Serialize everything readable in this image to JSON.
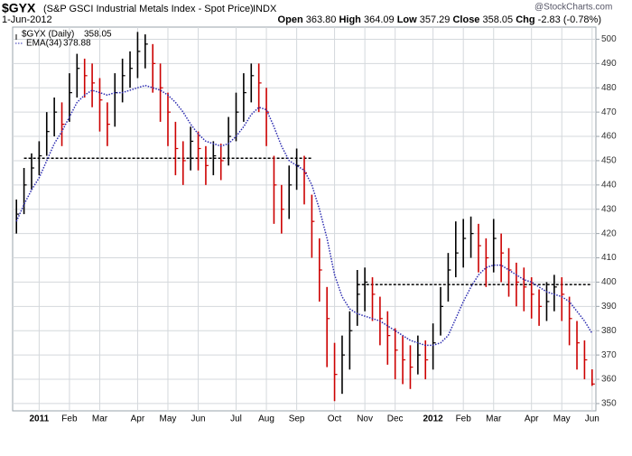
{
  "chart_data": {
    "type": "ohlc",
    "symbol": "$GYX",
    "title": "(S&P GSCI Industrial Metals Index - Spot Price)",
    "exchange": "INDX",
    "date": "1-Jun-2012",
    "watermark": "@StockCharts.com",
    "quote": {
      "open_label": "Open",
      "open": {
        "value": 363.8,
        "label": "363.80"
      },
      "high_label": "High",
      "high": {
        "value": 364.09,
        "label": "364.09"
      },
      "low_label": "Low",
      "low": {
        "value": 357.29,
        "label": "357.29"
      },
      "close_label": "Close",
      "close": {
        "value": 358.05,
        "label": "358.05"
      },
      "chg_label": "Chg",
      "chg": {
        "value": -2.83,
        "label": "-2.83"
      },
      "chg_pct": {
        "value": -0.78,
        "label": "(-0.78%)"
      }
    },
    "categories": [
      null,
      null,
      null,
      "2011",
      null,
      null,
      null,
      "Feb",
      null,
      null,
      null,
      "Mar",
      null,
      null,
      null,
      null,
      "Apr",
      null,
      null,
      null,
      "May",
      null,
      null,
      null,
      "Jun",
      null,
      null,
      null,
      null,
      "Jul",
      null,
      null,
      null,
      "Aug",
      null,
      null,
      null,
      "Sep",
      null,
      null,
      null,
      null,
      "Oct",
      null,
      null,
      null,
      "Nov",
      null,
      null,
      null,
      "Dec",
      null,
      null,
      null,
      null,
      "2012",
      null,
      null,
      null,
      "Feb",
      null,
      null,
      null,
      "Mar",
      null,
      null,
      null,
      null,
      "Apr",
      null,
      null,
      null,
      "May",
      null,
      null,
      null,
      "Jun"
    ],
    "series": [
      {
        "name": "$GYX (Daily)",
        "up_color": "#000000",
        "down_color": "#cc0000",
        "values": [
          428,
          440,
          447,
          452,
          462,
          470,
          465,
          478,
          488,
          485,
          482,
          475,
          465,
          478,
          485,
          488,
          495,
          498,
          490,
          480,
          470,
          455,
          450,
          458,
          455,
          448,
          452,
          450,
          460,
          470,
          478,
          485,
          482,
          470,
          440,
          430,
          440,
          448,
          445,
          425,
          405,
          385,
          362,
          370,
          380,
          395,
          400,
          395,
          385,
          378,
          372,
          368,
          365,
          370,
          368,
          375,
          390,
          405,
          412,
          418,
          420,
          415,
          410,
          418,
          412,
          405,
          400,
          398,
          395,
          390,
          392,
          398,
          395,
          385,
          375,
          368,
          358.05
        ],
        "high": [
          434,
          447,
          453,
          458,
          470,
          476,
          474,
          486,
          494,
          492,
          490,
          484,
          474,
          486,
          492,
          495,
          503,
          502,
          498,
          490,
          478,
          466,
          458,
          464,
          462,
          456,
          458,
          457,
          468,
          478,
          486,
          490,
          490,
          480,
          452,
          440,
          448,
          455,
          452,
          436,
          418,
          398,
          375,
          378,
          388,
          405,
          406,
          402,
          394,
          388,
          381,
          378,
          374,
          378,
          376,
          383,
          398,
          412,
          425,
          426,
          427,
          424,
          418,
          426,
          420,
          414,
          408,
          406,
          402,
          397,
          400,
          403,
          402,
          394,
          384,
          376,
          364.09
        ],
        "low": [
          420,
          428,
          438,
          444,
          452,
          460,
          456,
          466,
          476,
          476,
          472,
          462,
          456,
          464,
          474,
          480,
          484,
          488,
          478,
          466,
          456,
          444,
          440,
          446,
          446,
          440,
          444,
          442,
          448,
          458,
          466,
          474,
          470,
          456,
          424,
          420,
          426,
          438,
          432,
          410,
          392,
          365,
          351,
          354,
          364,
          382,
          388,
          384,
          374,
          366,
          360,
          358,
          356,
          362,
          360,
          364,
          378,
          392,
          402,
          406,
          410,
          404,
          398,
          404,
          400,
          394,
          390,
          388,
          385,
          382,
          384,
          388,
          384,
          374,
          364,
          360,
          357.29
        ]
      },
      {
        "name": "EMA(34)",
        "color": "#2b2bb0",
        "style": "dotted",
        "values": [
          425,
          432,
          438,
          443,
          450,
          457,
          462,
          468,
          474,
          477,
          479,
          478,
          477,
          478,
          478,
          479,
          480,
          481,
          480,
          479,
          477,
          474,
          470,
          465,
          461,
          458,
          457,
          456,
          457,
          460,
          464,
          469,
          472,
          471,
          464,
          456,
          450,
          448,
          446,
          440,
          430,
          418,
          403,
          394,
          389,
          387,
          386,
          385,
          384,
          382,
          380,
          378,
          376,
          375,
          374,
          374,
          375,
          378,
          385,
          392,
          398,
          403,
          406,
          407,
          407,
          405,
          403,
          401,
          400,
          398,
          396,
          395,
          394,
          392,
          388,
          384,
          378.88
        ]
      }
    ],
    "levels": [
      451,
      399
    ],
    "ylim": [
      347,
      505
    ],
    "yticks": [
      350,
      360,
      370,
      380,
      390,
      400,
      410,
      420,
      430,
      440,
      450,
      460,
      470,
      480,
      490,
      500
    ],
    "grid": true
  }
}
